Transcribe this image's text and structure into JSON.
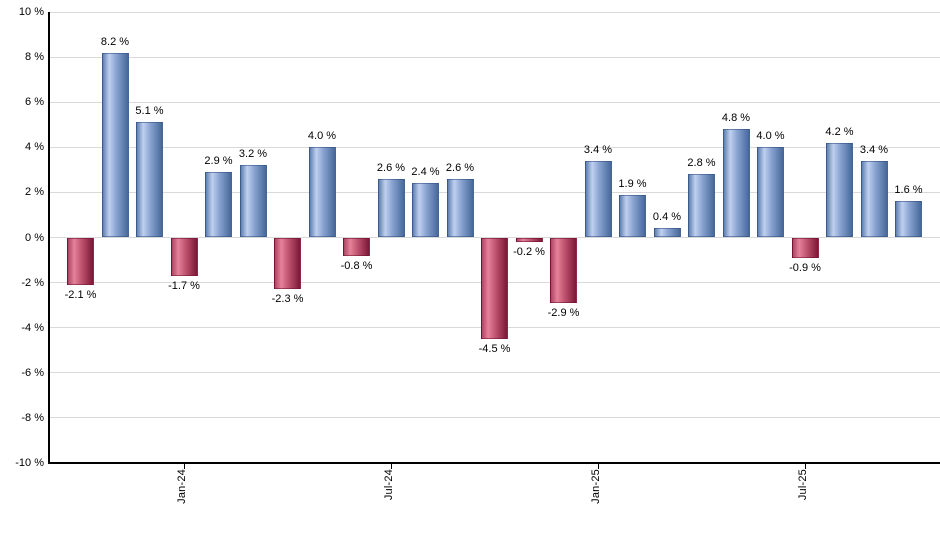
{
  "chart_data": {
    "type": "bar",
    "title": "",
    "xlabel": "",
    "ylabel": "",
    "ylim": [
      -10,
      10
    ],
    "y_tick_step": 2,
    "grid": true,
    "legend_position": "none",
    "y_tick_labels": [
      "10 %",
      "8 %",
      "6 %",
      "4 %",
      "2 %",
      "0 %",
      "-2 %",
      "-4 %",
      "-6 %",
      "-8 %",
      "-10 %"
    ],
    "values": [
      -2.1,
      8.2,
      5.1,
      -1.7,
      2.9,
      3.2,
      -2.3,
      4.0,
      -0.8,
      2.6,
      2.4,
      2.6,
      -4.5,
      -0.2,
      -2.9,
      3.4,
      1.9,
      0.4,
      2.8,
      4.8,
      4.0,
      -0.9,
      4.2,
      3.4,
      1.6
    ],
    "value_labels": [
      "-2.1 %",
      "8.2 %",
      "5.1 %",
      "-1.7 %",
      "2.9 %",
      "3.2 %",
      "-2.3 %",
      "4.0 %",
      "-0.8 %",
      "2.6 %",
      "2.4 %",
      "2.6 %",
      "-4.5 %",
      "-0.2 %",
      "-2.9 %",
      "3.4 %",
      "1.9 %",
      "0.4 %",
      "2.8 %",
      "4.8 %",
      "4.0 %",
      "-0.9 %",
      "4.2 %",
      "3.4 %",
      "1.6 %"
    ],
    "x_ticks": [
      {
        "label": "Jan-24",
        "bar_index": 3
      },
      {
        "label": "Jul-24",
        "bar_index": 9
      },
      {
        "label": "Jan-25",
        "bar_index": 15
      },
      {
        "label": "Jul-25",
        "bar_index": 21
      }
    ],
    "colors": {
      "positive_bar": "#8ba5d2",
      "positive_bar_highlight": "#c0d0f0",
      "positive_bar_edge": "#46689a",
      "positive_bar_left": "#6080b1",
      "negative_bar": "#c25672",
      "negative_bar_highlight": "#e58299",
      "negative_bar_edge": "#7c1737",
      "negative_bar_left": "#ad4565",
      "gridline": "#d9d9d9",
      "axis_line": "#000000",
      "label_text": "#000000",
      "background": "#ffffff"
    }
  }
}
